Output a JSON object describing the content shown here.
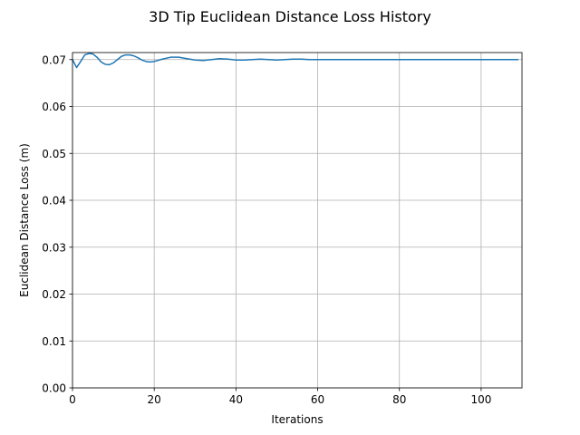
{
  "chart_data": {
    "type": "line",
    "title": "3D Tip Euclidean Distance Loss History",
    "xlabel": "Iterations",
    "ylabel": "Euclidean Distance Loss (m)",
    "xlim": [
      0,
      110
    ],
    "ylim": [
      0.0,
      0.0715
    ],
    "xticks": [
      0,
      20,
      40,
      60,
      80,
      100
    ],
    "yticks": [
      0.0,
      0.01,
      0.02,
      0.03,
      0.04,
      0.05,
      0.06,
      0.07
    ],
    "xtick_labels": [
      "0",
      "20",
      "40",
      "60",
      "80",
      "100"
    ],
    "ytick_labels": [
      "0.00",
      "0.01",
      "0.02",
      "0.03",
      "0.04",
      "0.05",
      "0.06",
      "0.07"
    ],
    "grid": true,
    "series": [
      {
        "color": "#1f77b4",
        "x": [
          0,
          1,
          2,
          3,
          4,
          5,
          6,
          7,
          8,
          9,
          10,
          11,
          12,
          13,
          14,
          15,
          16,
          17,
          18,
          19,
          20,
          22,
          24,
          26,
          28,
          30,
          32,
          34,
          36,
          38,
          40,
          42,
          44,
          46,
          48,
          50,
          52,
          54,
          56,
          58,
          60,
          64,
          68,
          72,
          76,
          80,
          85,
          90,
          95,
          100,
          105,
          109
        ],
        "y": [
          0.07,
          0.0683,
          0.0696,
          0.071,
          0.0713,
          0.0712,
          0.0705,
          0.0695,
          0.069,
          0.0689,
          0.0693,
          0.07,
          0.0707,
          0.071,
          0.071,
          0.0708,
          0.0704,
          0.0699,
          0.0696,
          0.0695,
          0.0696,
          0.0701,
          0.0705,
          0.0705,
          0.0702,
          0.0699,
          0.0698,
          0.07,
          0.0702,
          0.0701,
          0.0699,
          0.0699,
          0.07,
          0.0701,
          0.07,
          0.0699,
          0.07,
          0.0701,
          0.0701,
          0.07,
          0.07,
          0.07,
          0.07,
          0.07,
          0.07,
          0.07,
          0.07,
          0.07,
          0.07,
          0.07,
          0.07,
          0.07
        ]
      }
    ]
  }
}
